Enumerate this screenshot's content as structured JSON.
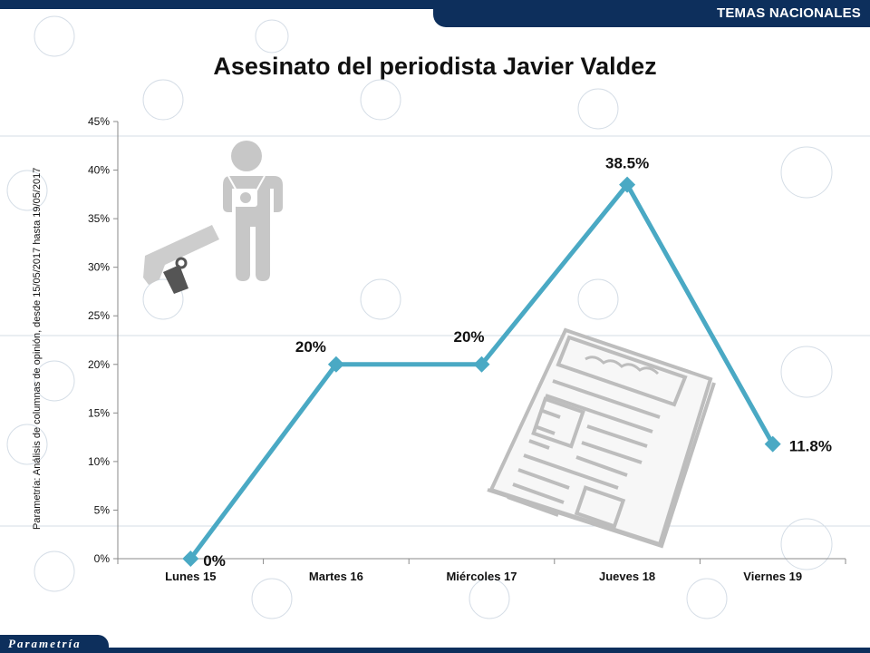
{
  "header": {
    "section_label": "TEMAS NACIONALES"
  },
  "footer": {
    "brand": "Parametría"
  },
  "source_note": "Parametría: Análisis de columnas de opinión, desde 15/05/2017 hasta 19/05/2017",
  "icons": [
    "journalist-icon",
    "gun-icon",
    "newspaper-icon"
  ],
  "colors": {
    "line": "#4aa9c4",
    "header": "#0d2f5c"
  },
  "chart_data": {
    "type": "line",
    "title": "Asesinato del periodista Javier Valdez",
    "categories": [
      "Lunes 15",
      "Martes 16",
      "Miércoles 17",
      "Jueves 18",
      "Viernes 19"
    ],
    "values": [
      0,
      20,
      20,
      38.5,
      11.8
    ],
    "data_labels": [
      "0%",
      "20%",
      "20%",
      "38.5%",
      "11.8%"
    ],
    "yticks": [
      "0%",
      "5%",
      "10%",
      "15%",
      "20%",
      "25%",
      "30%",
      "35%",
      "40%",
      "45%"
    ],
    "ylim": [
      0,
      45
    ],
    "grid": false,
    "legend": "none"
  }
}
